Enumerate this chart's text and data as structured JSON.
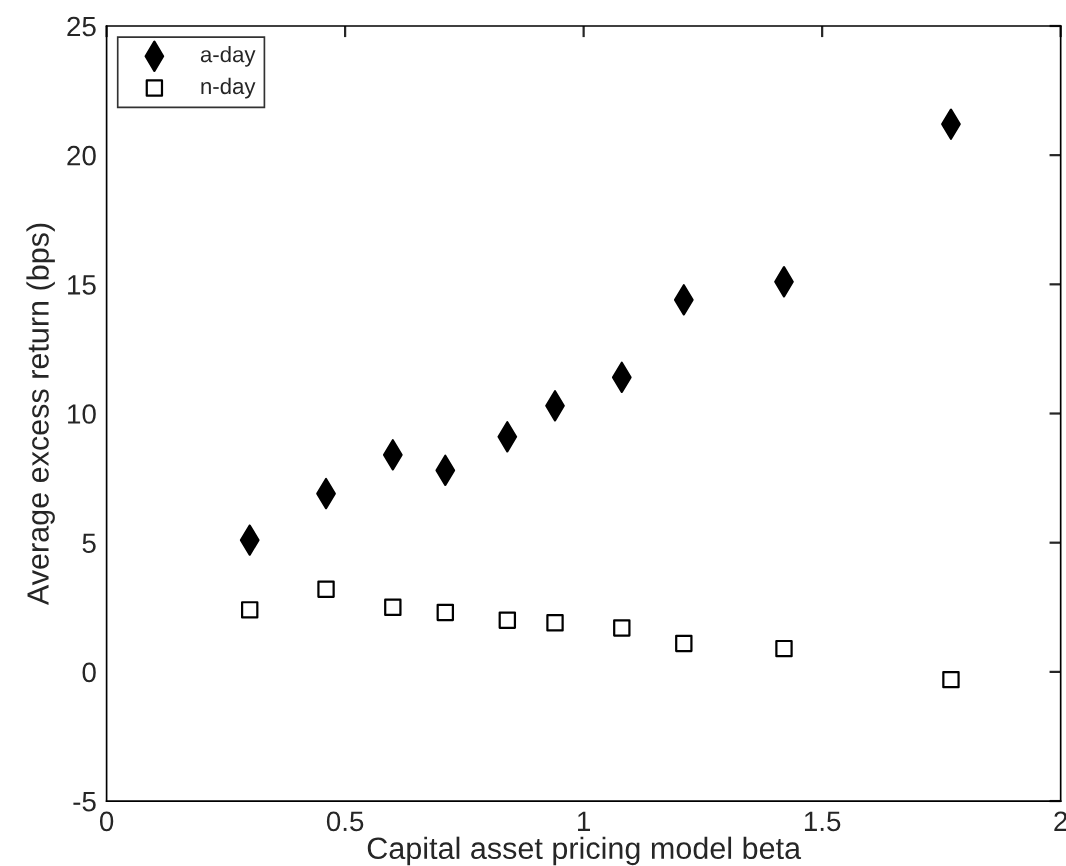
{
  "chart_data": {
    "type": "scatter",
    "xlabel": "Capital asset pricing model beta",
    "ylabel": "Average excess return (bps)",
    "x": [
      0.3,
      0.46,
      0.6,
      0.71,
      0.84,
      0.94,
      1.08,
      1.21,
      1.42,
      1.77
    ],
    "series": [
      {
        "name": "a-day",
        "color": "#000000",
        "marker": "diamond",
        "values": [
          5.1,
          6.9,
          8.4,
          7.8,
          9.1,
          10.3,
          11.4,
          14.4,
          15.1,
          21.2
        ]
      },
      {
        "name": "n-day",
        "color": "#000000",
        "marker": "square",
        "values": [
          2.4,
          3.2,
          2.5,
          2.3,
          2.0,
          1.9,
          1.7,
          1.1,
          0.9,
          -0.3
        ]
      }
    ],
    "xlim": [
      0,
      2
    ],
    "xticks": [
      0,
      0.5,
      1,
      1.5,
      2
    ],
    "ylim": [
      -5,
      25
    ],
    "yticks": [
      -5,
      0,
      5,
      10,
      15,
      20,
      25
    ],
    "grid": false,
    "legend": "top left"
  }
}
